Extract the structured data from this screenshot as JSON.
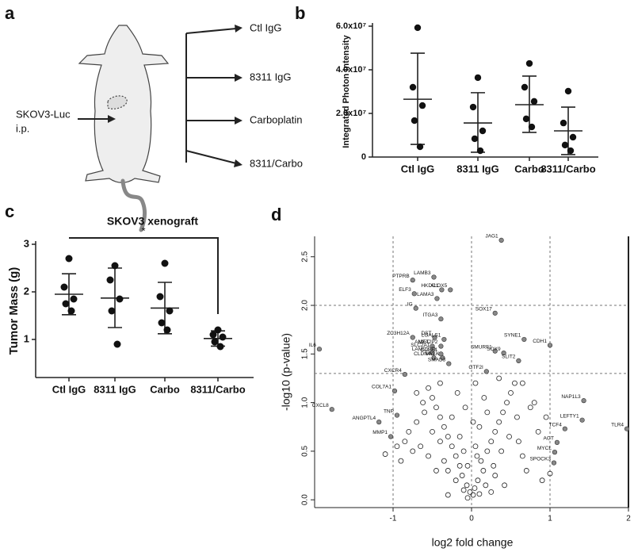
{
  "panel_labels": [
    "a",
    "b",
    "c",
    "d"
  ],
  "diagram": {
    "injection_label": [
      "SKOV3-Luc",
      "i.p."
    ],
    "groups": [
      "Ctl IgG",
      "8311 IgG",
      "Carboplatin",
      "8311/Carbo"
    ]
  },
  "chart_data": [
    {
      "type": "dotplot",
      "ylabel": "Integrated Photon Intensity",
      "categories": [
        "Ctl IgG",
        "8311 IgG",
        "Carbo",
        "8311/Carbo"
      ],
      "points": [
        [
          59300000,
          32000000,
          23600000,
          16700000,
          4700000
        ],
        [
          36400000,
          22900000,
          12000000,
          8400000,
          2900000
        ],
        [
          42900000,
          32000000,
          25500000,
          17500000,
          13800000
        ],
        [
          30200000,
          15600000,
          9100000,
          5500000,
          2900000
        ]
      ],
      "means": [
        26500000,
        15600000,
        24000000,
        12000000
      ],
      "upper": [
        47600000,
        29500000,
        37100000,
        22900000
      ],
      "lower": [
        5800000,
        2200000,
        11300000,
        1100000
      ],
      "ylim": [
        0,
        60000000
      ],
      "yticks": [
        0,
        {
          "value": 20000000,
          "label": "2.0x10⁷"
        },
        {
          "value": 40000000,
          "label": "4.0x10⁷"
        },
        {
          "value": 60000000,
          "label": "6.0x10⁷"
        }
      ]
    },
    {
      "type": "dotplot",
      "title": "SKOV3 xenograft",
      "ylabel": "Tumor Mass (g)",
      "annotation": "*",
      "categories": [
        "Ctl IgG",
        "8311 IgG",
        "Carbo",
        "8311/Carbo"
      ],
      "points": [
        [
          2.7,
          2.1,
          1.85,
          1.75,
          1.6
        ],
        [
          2.55,
          2.25,
          1.85,
          1.6,
          0.9
        ],
        [
          2.6,
          1.9,
          1.6,
          1.35,
          1.2
        ],
        [
          1.2,
          1.1,
          1.05,
          0.95,
          0.85
        ]
      ],
      "means": [
        1.95,
        1.87,
        1.66,
        1.02
      ],
      "upper": [
        2.38,
        2.5,
        2.2,
        1.18
      ],
      "lower": [
        1.52,
        1.25,
        1.12,
        0.86
      ],
      "ylim": [
        0.2,
        3
      ],
      "yticks": [
        1,
        2,
        3
      ]
    },
    {
      "type": "volcano",
      "xlabel": "log2 fold change",
      "ylabel": "-log10 (p-value)",
      "xlim": [
        -2,
        2.02
      ],
      "ylim": [
        -0.08,
        2.71
      ],
      "xticks": [
        -1,
        0,
        1,
        2
      ],
      "yticks": [
        {
          "value": 0,
          "label": "0.0"
        },
        0.5,
        {
          "value": 1,
          "label": "1.0"
        },
        1.5,
        {
          "value": 2,
          "label": "2.0"
        },
        2.5
      ],
      "threshold_x": [
        -1,
        0,
        1
      ],
      "threshold_y": [
        1.3,
        2
      ],
      "points": {
        "x": [
          -0.05,
          0.02,
          -0.02,
          0.04,
          -0.06,
          0.08,
          -0.1,
          0.1,
          -0.12,
          0.15,
          -0.15,
          0.12,
          -0.2,
          0.2,
          -0.25,
          0.25,
          -0.3,
          0.3,
          -0.35,
          0.35,
          -0.4,
          0.4,
          -0.45,
          0.45,
          -0.5,
          0.5,
          -0.55,
          0.55,
          -0.6,
          0.6,
          -0.65,
          0.65,
          -0.7,
          0.7,
          -0.75,
          0.75,
          -0.8,
          0.8,
          -0.85,
          0.85,
          -0.9,
          0.9,
          -0.3,
          0.3,
          -0.2,
          0.18,
          -0.1,
          0.05,
          -0.05,
          0.07,
          -0.15,
          0.1,
          -0.25,
          0.2,
          -0.35,
          0.28,
          -0.4,
          0.38,
          -0.5,
          0.48,
          -0.55,
          0.58,
          -0.62,
          0.16,
          -0.18,
          0.05,
          -0.08,
          0.02,
          -0.45,
          0.42,
          -0.3,
          0.25,
          -1.1,
          -0.95,
          0.95,
          1.0,
          0.65,
          -0.7,
          0.35,
          -0.4
        ],
        "y": [
          0.02,
          0.05,
          0.08,
          0.12,
          0.15,
          0.2,
          0.1,
          0.06,
          0.25,
          0.3,
          0.35,
          0.4,
          0.45,
          0.5,
          0.55,
          0.6,
          0.65,
          0.7,
          0.75,
          0.8,
          0.85,
          0.9,
          0.95,
          1.0,
          1.05,
          1.1,
          1.15,
          1.2,
          0.9,
          0.6,
          0.55,
          0.45,
          0.8,
          0.3,
          0.5,
          0.95,
          0.7,
          1.0,
          0.6,
          0.7,
          0.4,
          0.2,
          0.3,
          0.25,
          0.2,
          0.15,
          0.5,
          0.55,
          0.35,
          0.45,
          0.65,
          0.75,
          0.85,
          0.9,
          0.4,
          0.35,
          0.6,
          0.5,
          0.7,
          0.65,
          0.45,
          0.85,
          1.0,
          1.05,
          1.1,
          1.2,
          0.95,
          0.8,
          0.3,
          0.15,
          0.05,
          0.08,
          0.47,
          0.55,
          0.85,
          0.27,
          1.2,
          1.1,
          1.25,
          1.2
        ]
      },
      "labeled": {
        "labels": [
          "JAG1",
          "LAMB3",
          "PTPRB",
          "HKDC1",
          "ALOX5",
          "ELF3",
          "LAMA3",
          "IG",
          "SOX17",
          "ITGA3",
          "ZC3H12A",
          "DST",
          "LGALS1",
          "MET",
          "ANXA2P2",
          "SLC2A1",
          "CCBE1",
          "LAMC2",
          "CLDN4",
          "MYLK",
          "SMAD3",
          "SYNE1",
          "CDH1",
          "SMURF1",
          "SOX9",
          "SLIT2",
          "GTF2I",
          "IL6",
          "CXCR4",
          "COL7A1",
          "CXCL8",
          "TNP",
          "ANGPTL4",
          "MMP1",
          "NAP1L3",
          "LEFTY1",
          "TLR4",
          "TCF4",
          "AGT",
          "MYCL",
          "SPOCK3"
        ],
        "x": [
          0.38,
          -0.48,
          -0.75,
          -0.38,
          -0.27,
          -0.73,
          -0.44,
          -0.71,
          0.3,
          -0.39,
          -0.75,
          -0.47,
          -0.35,
          -0.5,
          -0.39,
          -0.49,
          -0.39,
          -0.5,
          -0.48,
          -0.37,
          -0.29,
          0.67,
          1.0,
          0.3,
          0.41,
          0.6,
          0.19,
          -1.94,
          -0.85,
          -0.98,
          -1.78,
          -0.95,
          -1.18,
          -1.03,
          1.43,
          1.41,
          1.98,
          1.19,
          1.09,
          1.06,
          1.05
        ],
        "y": [
          2.67,
          2.29,
          2.26,
          2.16,
          2.16,
          2.12,
          2.07,
          1.97,
          1.92,
          1.86,
          1.67,
          1.67,
          1.65,
          1.58,
          1.58,
          1.55,
          1.5,
          1.51,
          1.46,
          1.46,
          1.4,
          1.65,
          1.59,
          1.53,
          1.51,
          1.43,
          1.32,
          1.55,
          1.29,
          1.12,
          0.93,
          0.87,
          0.8,
          0.65,
          1.02,
          0.82,
          0.73,
          0.73,
          0.59,
          0.49,
          0.38
        ]
      }
    }
  ]
}
